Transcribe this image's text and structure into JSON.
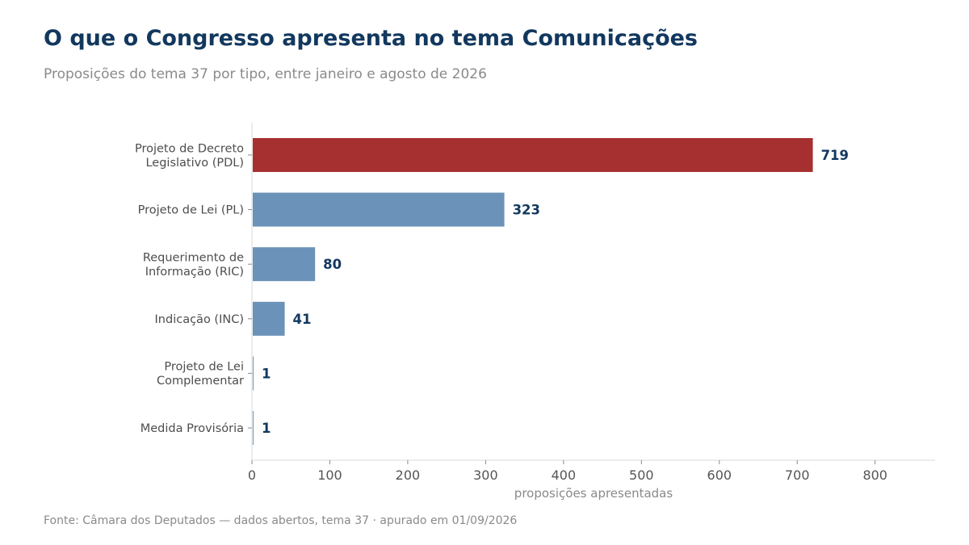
{
  "header": {
    "title": "O que o Congresso apresenta no tema Comunicações",
    "subtitle": "Proposições do tema 37 por tipo, entre janeiro e agosto de 2026"
  },
  "footer": {
    "source": "Fonte: Câmara dos Deputados — dados abertos, tema 37 · apurado em 01/09/2026"
  },
  "chart_data": {
    "type": "bar",
    "orientation": "horizontal",
    "categories": [
      [
        "Projeto de Decreto",
        "Legislativo (PDL)"
      ],
      [
        "Projeto de Lei (PL)"
      ],
      [
        "Requerimento de",
        "Informação (RIC)"
      ],
      [
        "Indicação (INC)"
      ],
      [
        "Projeto de Lei",
        "Complementar"
      ],
      [
        "Medida Provisória"
      ]
    ],
    "values": [
      719,
      323,
      80,
      41,
      1,
      1
    ],
    "value_labels": [
      "719",
      "323",
      "80",
      "41",
      "1",
      "1"
    ],
    "highlight_index": 0,
    "xlabel": "proposições apresentadas",
    "ylabel": "",
    "xlim": [
      0,
      877
    ],
    "xticks": [
      0,
      100,
      200,
      300,
      400,
      500,
      600,
      700,
      800
    ],
    "grid": false,
    "legend": "none",
    "colors": {
      "highlight": "#a63030",
      "default": "#6b92b8",
      "value_text": "#12385e",
      "axis": "#d9d9d9"
    }
  }
}
